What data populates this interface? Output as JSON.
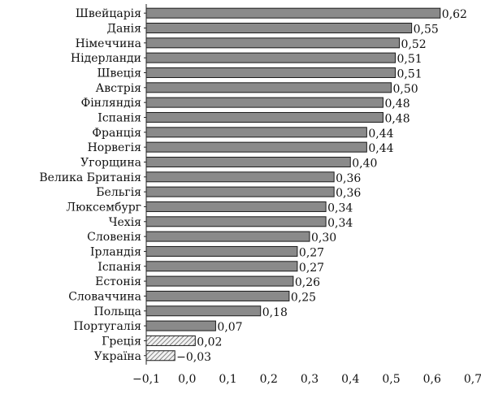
{
  "chart_data": {
    "type": "bar",
    "orientation": "horizontal",
    "title": "",
    "xlabel": "",
    "ylabel": "",
    "categories": [
      "Швейцарія",
      "Данія",
      "Німеччина",
      "Нідерланди",
      "Швеція",
      "Австрія",
      "Фінляндія",
      "Іспанія",
      "Франція",
      "Норвегія",
      "Угорщина",
      "Велика Британія",
      "Бельгія",
      "Люксембург",
      "Чехія",
      "Словенія",
      "Ірландія",
      "Іспанія",
      "Естонія",
      "Словаччина",
      "Польща",
      "Португалія",
      "Греція",
      "Україна"
    ],
    "values": [
      0.62,
      0.55,
      0.52,
      0.51,
      0.51,
      0.5,
      0.48,
      0.48,
      0.44,
      0.44,
      0.4,
      0.36,
      0.36,
      0.34,
      0.34,
      0.3,
      0.27,
      0.27,
      0.26,
      0.25,
      0.18,
      0.07,
      0.02,
      -0.03
    ],
    "value_labels": [
      "0,62",
      "0,55",
      "0,52",
      "0,51",
      "0,51",
      "0,50",
      "0,48",
      "0,48",
      "0,44",
      "0,44",
      "0,40",
      "0,36",
      "0,36",
      "0,34",
      "0,34",
      "0,30",
      "0,27",
      "0,27",
      "0,26",
      "0,25",
      "0,18",
      "0,07",
      "0,02",
      "−0,03"
    ],
    "hatched": [
      "Греція",
      "Україна"
    ],
    "xlim": [
      -0.1,
      0.7
    ],
    "xticks": [
      -0.1,
      0.0,
      0.1,
      0.2,
      0.3,
      0.4,
      0.5,
      0.6,
      0.7
    ],
    "xtick_labels": [
      "−0,1",
      "0,0",
      "0,1",
      "0,2",
      "0,3",
      "0,4",
      "0,5",
      "0,6",
      "0,7"
    ],
    "grid": false,
    "legend": "none",
    "colors": {
      "bar_fill": "#8a8a8a",
      "bar_stroke": "#1a1a1a",
      "hatch_fill": "#f2f2f2",
      "hatch_line": "#555555",
      "axis": "#222222"
    }
  }
}
